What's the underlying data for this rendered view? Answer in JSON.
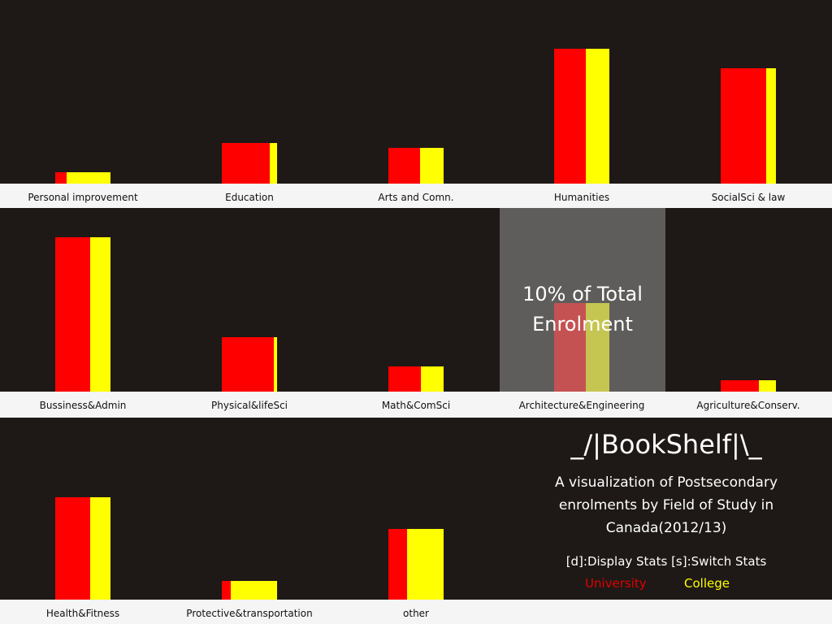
{
  "colors": {
    "university": "#ff0000",
    "college": "#ffff00",
    "background": "#1e1916",
    "shelf": "#f5f5f5"
  },
  "chart_data": {
    "type": "bar",
    "title": "_/|BookShelf|\\_",
    "subtitle": "A visualization of Postsecondary enrolments by Field of Study in Canada(2012/13)",
    "series_names": [
      "University",
      "College"
    ],
    "categories": [
      {
        "name": "Personal improvement",
        "university": 1.1,
        "college": 4.2
      },
      {
        "name": "Education",
        "university": 4.5,
        "college": 0.7
      },
      {
        "name": "Arts and Comn.",
        "university": 2.9,
        "college": 2.2
      },
      {
        "name": "Humanities",
        "university": 3.0,
        "college": 2.2
      },
      {
        "name": "SocialSci & law",
        "university": 4.4,
        "college": 0.9
      },
      {
        "name": "Bussiness&Admin",
        "university": 3.4,
        "college": 2.0
      },
      {
        "name": "Physical&lifeSci",
        "university": 5.0,
        "college": 0.3
      },
      {
        "name": "Math&ComSci",
        "university": 2.7,
        "college": 1.9
      },
      {
        "name": "Architecture&Engineering",
        "university": 3.0,
        "college": 2.2
      },
      {
        "name": "Agriculture&Conserv.",
        "university": 3.6,
        "college": 1.6
      },
      {
        "name": "Health&Fitness",
        "university": 3.4,
        "college": 2.0
      },
      {
        "name": "Protective&transportation",
        "university": 0.9,
        "college": 4.5
      },
      {
        "name": "other",
        "university": 1.9,
        "college": 3.6
      }
    ],
    "heights_pct": [
      1.0,
      3.5,
      3.1,
      11.7,
      10.0,
      13.4,
      4.7,
      2.2,
      7.7,
      1.0,
      8.9,
      1.6,
      6.1
    ]
  },
  "overlay": {
    "text_line1": "10% of Total",
    "text_line2": "Enrolment"
  },
  "instructions": {
    "keys": "[d]:Display Stats [s]:Switch Stats",
    "university": "University",
    "college": "College"
  }
}
